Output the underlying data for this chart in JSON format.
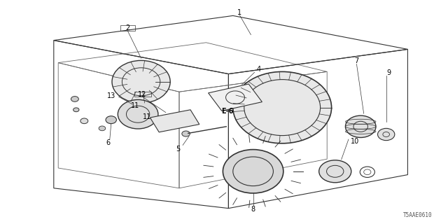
{
  "bg_color": "#ffffff",
  "line_color": "#333333",
  "part_code": "T5AAE0610"
}
